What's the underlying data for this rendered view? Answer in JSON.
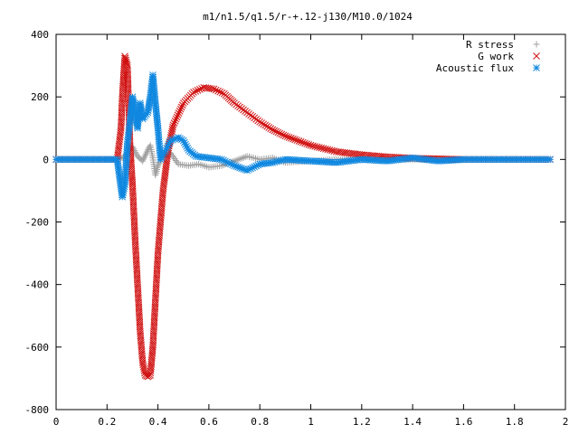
{
  "chart_data": {
    "type": "scatter",
    "title": "m1/n1.5/q1.5/r-+.12-j130/M10.0/1024",
    "xlabel": "",
    "ylabel": "",
    "xlim": [
      0,
      2
    ],
    "ylim": [
      -800,
      400
    ],
    "xticks": [
      "0",
      "0.2",
      "0.4",
      "0.6",
      "0.8",
      "1",
      "1.2",
      "1.4",
      "1.6",
      "1.8",
      "2"
    ],
    "yticks": [
      "400",
      "200",
      "0",
      "-200",
      "-400",
      "-600",
      "-800"
    ],
    "legend_position": "top-right",
    "grid": false,
    "series": [
      {
        "name": "R stress",
        "marker": "plus",
        "color": "#a0a0a0",
        "points": [
          [
            0.0,
            0
          ],
          [
            0.1,
            0
          ],
          [
            0.2,
            0
          ],
          [
            0.24,
            0
          ],
          [
            0.26,
            5
          ],
          [
            0.28,
            20
          ],
          [
            0.3,
            40
          ],
          [
            0.32,
            10
          ],
          [
            0.34,
            -5
          ],
          [
            0.36,
            30
          ],
          [
            0.37,
            45
          ],
          [
            0.38,
            5
          ],
          [
            0.39,
            -50
          ],
          [
            0.4,
            -20
          ],
          [
            0.42,
            10
          ],
          [
            0.45,
            20
          ],
          [
            0.48,
            -15
          ],
          [
            0.52,
            -20
          ],
          [
            0.56,
            -15
          ],
          [
            0.6,
            -25
          ],
          [
            0.65,
            -20
          ],
          [
            0.7,
            -5
          ],
          [
            0.75,
            10
          ],
          [
            0.8,
            0
          ],
          [
            0.85,
            5
          ],
          [
            0.9,
            -10
          ],
          [
            1.0,
            -5
          ],
          [
            1.1,
            0
          ],
          [
            1.2,
            0
          ],
          [
            1.4,
            0
          ],
          [
            1.6,
            0
          ],
          [
            1.8,
            0
          ],
          [
            1.94,
            0
          ]
        ]
      },
      {
        "name": "G work",
        "marker": "cross",
        "color": "#d01010",
        "points": [
          [
            0.0,
            0
          ],
          [
            0.1,
            0
          ],
          [
            0.2,
            0
          ],
          [
            0.24,
            0
          ],
          [
            0.255,
            100
          ],
          [
            0.26,
            200
          ],
          [
            0.27,
            330
          ],
          [
            0.28,
            300
          ],
          [
            0.29,
            50
          ],
          [
            0.3,
            -80
          ],
          [
            0.31,
            -250
          ],
          [
            0.32,
            -400
          ],
          [
            0.33,
            -550
          ],
          [
            0.34,
            -650
          ],
          [
            0.35,
            -690
          ],
          [
            0.36,
            -695
          ],
          [
            0.37,
            -690
          ],
          [
            0.38,
            -600
          ],
          [
            0.39,
            -450
          ],
          [
            0.4,
            -300
          ],
          [
            0.42,
            -100
          ],
          [
            0.44,
            30
          ],
          [
            0.46,
            110
          ],
          [
            0.5,
            180
          ],
          [
            0.54,
            215
          ],
          [
            0.58,
            230
          ],
          [
            0.62,
            225
          ],
          [
            0.66,
            210
          ],
          [
            0.7,
            180
          ],
          [
            0.75,
            150
          ],
          [
            0.8,
            120
          ],
          [
            0.85,
            95
          ],
          [
            0.9,
            75
          ],
          [
            1.0,
            45
          ],
          [
            1.1,
            25
          ],
          [
            1.2,
            15
          ],
          [
            1.3,
            8
          ],
          [
            1.4,
            4
          ],
          [
            1.5,
            2
          ],
          [
            1.6,
            0
          ],
          [
            1.8,
            0
          ],
          [
            1.94,
            0
          ]
        ]
      },
      {
        "name": "Acoustic flux",
        "marker": "star",
        "color": "#1088e0",
        "points": [
          [
            0.0,
            0
          ],
          [
            0.1,
            0
          ],
          [
            0.2,
            0
          ],
          [
            0.24,
            0
          ],
          [
            0.25,
            -60
          ],
          [
            0.26,
            -120
          ],
          [
            0.27,
            -80
          ],
          [
            0.28,
            50
          ],
          [
            0.29,
            120
          ],
          [
            0.3,
            200
          ],
          [
            0.31,
            150
          ],
          [
            0.32,
            100
          ],
          [
            0.33,
            180
          ],
          [
            0.34,
            130
          ],
          [
            0.36,
            150
          ],
          [
            0.37,
            200
          ],
          [
            0.38,
            270
          ],
          [
            0.39,
            180
          ],
          [
            0.4,
            100
          ],
          [
            0.41,
            0
          ],
          [
            0.43,
            30
          ],
          [
            0.45,
            60
          ],
          [
            0.48,
            70
          ],
          [
            0.5,
            60
          ],
          [
            0.52,
            30
          ],
          [
            0.55,
            10
          ],
          [
            0.6,
            5
          ],
          [
            0.65,
            0
          ],
          [
            0.7,
            -20
          ],
          [
            0.75,
            -35
          ],
          [
            0.8,
            -15
          ],
          [
            0.85,
            -10
          ],
          [
            0.9,
            0
          ],
          [
            1.0,
            -5
          ],
          [
            1.1,
            -10
          ],
          [
            1.2,
            0
          ],
          [
            1.3,
            -5
          ],
          [
            1.4,
            5
          ],
          [
            1.5,
            -5
          ],
          [
            1.6,
            0
          ],
          [
            1.8,
            0
          ],
          [
            1.94,
            0
          ]
        ]
      }
    ]
  }
}
